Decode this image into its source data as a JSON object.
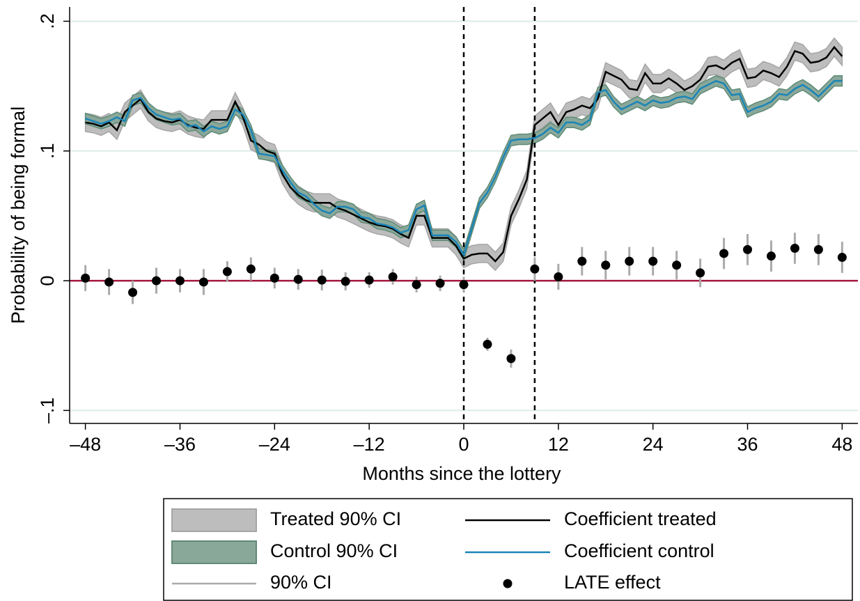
{
  "chart_data": {
    "type": "line",
    "xlabel": "Months since the lottery",
    "ylabel": "Probability of being formal",
    "x": [
      -48,
      -47,
      -46,
      -45,
      -44,
      -43,
      -42,
      -41,
      -40,
      -39,
      -38,
      -37,
      -36,
      -35,
      -34,
      -33,
      -32,
      -31,
      -30,
      -29,
      -28,
      -27,
      -26,
      -25,
      -24,
      -23,
      -22,
      -21,
      -20,
      -19,
      -18,
      -17,
      -16,
      -15,
      -14,
      -13,
      -12,
      -11,
      -10,
      -9,
      -8,
      -7,
      -6,
      -5,
      -4,
      -3,
      -2,
      -1,
      0,
      1,
      2,
      3,
      4,
      5,
      6,
      7,
      8,
      9,
      10,
      11,
      12,
      13,
      14,
      15,
      16,
      17,
      18,
      19,
      20,
      21,
      22,
      23,
      24,
      25,
      26,
      27,
      28,
      29,
      30,
      31,
      32,
      33,
      34,
      35,
      36,
      37,
      38,
      39,
      40,
      41,
      42,
      43,
      44,
      45,
      46,
      47,
      48
    ],
    "series": [
      {
        "name": "Coefficient treated",
        "color": "#000000",
        "ci_name": "Treated 90% CI",
        "ci_color": "#bdbdbd",
        "ci_edge": "#a5a5a5",
        "ci_halfwidth": 0.007,
        "values": [
          0.122,
          0.121,
          0.119,
          0.122,
          0.116,
          0.13,
          0.135,
          0.14,
          0.13,
          0.125,
          0.123,
          0.122,
          0.124,
          0.12,
          0.118,
          0.117,
          0.124,
          0.124,
          0.124,
          0.138,
          0.126,
          0.108,
          0.105,
          0.1,
          0.098,
          0.082,
          0.072,
          0.066,
          0.062,
          0.06,
          0.06,
          0.06,
          0.056,
          0.054,
          0.051,
          0.048,
          0.045,
          0.043,
          0.042,
          0.04,
          0.036,
          0.033,
          0.05,
          0.05,
          0.033,
          0.033,
          0.033,
          0.027,
          0.017,
          0.02,
          0.021,
          0.021,
          0.015,
          0.022,
          0.05,
          0.063,
          0.078,
          0.12,
          0.125,
          0.13,
          0.12,
          0.13,
          0.132,
          0.135,
          0.133,
          0.14,
          0.161,
          0.158,
          0.155,
          0.148,
          0.147,
          0.16,
          0.152,
          0.152,
          0.156,
          0.152,
          0.147,
          0.15,
          0.155,
          0.165,
          0.166,
          0.163,
          0.168,
          0.171,
          0.156,
          0.157,
          0.162,
          0.16,
          0.157,
          0.165,
          0.177,
          0.175,
          0.168,
          0.169,
          0.172,
          0.18,
          0.173
        ]
      },
      {
        "name": "Coefficient control",
        "color": "#1a85b8",
        "ci_name": "Control 90% CI",
        "ci_color": "#8aa89a",
        "ci_edge": "#5f8a75",
        "ci_halfwidth": 0.004,
        "values": [
          0.125,
          0.123,
          0.121,
          0.123,
          0.126,
          0.123,
          0.139,
          0.141,
          0.133,
          0.128,
          0.126,
          0.124,
          0.125,
          0.119,
          0.12,
          0.115,
          0.119,
          0.117,
          0.119,
          0.132,
          0.128,
          0.116,
          0.098,
          0.097,
          0.096,
          0.085,
          0.076,
          0.068,
          0.065,
          0.059,
          0.054,
          0.052,
          0.057,
          0.057,
          0.055,
          0.049,
          0.048,
          0.044,
          0.043,
          0.041,
          0.037,
          0.039,
          0.055,
          0.058,
          0.035,
          0.035,
          0.035,
          0.03,
          0.02,
          0.04,
          0.06,
          0.068,
          0.08,
          0.095,
          0.108,
          0.109,
          0.109,
          0.11,
          0.113,
          0.118,
          0.114,
          0.122,
          0.122,
          0.12,
          0.124,
          0.145,
          0.147,
          0.138,
          0.132,
          0.135,
          0.138,
          0.135,
          0.139,
          0.137,
          0.138,
          0.141,
          0.142,
          0.14,
          0.148,
          0.151,
          0.154,
          0.152,
          0.143,
          0.144,
          0.13,
          0.133,
          0.135,
          0.138,
          0.144,
          0.143,
          0.148,
          0.151,
          0.147,
          0.142,
          0.148,
          0.154,
          0.154
        ]
      }
    ],
    "late": {
      "name": "LATE effect",
      "error_name": "90% CI",
      "color": "#000000",
      "error_color": "#aaaaaa",
      "x": [
        -48,
        -45,
        -42,
        -39,
        -36,
        -33,
        -30,
        -27,
        -24,
        -21,
        -18,
        -15,
        -12,
        -9,
        -6,
        -3,
        0,
        3,
        6,
        9,
        12,
        15,
        18,
        21,
        24,
        27,
        30,
        33,
        36,
        39,
        42,
        45,
        48
      ],
      "values": [
        0.002,
        -0.001,
        -0.009,
        0,
        0,
        -0.001,
        0.007,
        0.009,
        0.002,
        0.001,
        0.0005,
        -0.0005,
        0.0005,
        0.003,
        -0.003,
        -0.002,
        -0.003,
        -0.049,
        -0.06,
        0.009,
        0.003,
        0.015,
        0.012,
        0.015,
        0.015,
        0.012,
        0.006,
        0.021,
        0.024,
        0.019,
        0.025,
        0.024,
        0.018
      ],
      "errors": [
        0.01,
        0.01,
        0.009,
        0.01,
        0.009,
        0.01,
        0.008,
        0.009,
        0.008,
        0.008,
        0.008,
        0.007,
        0.006,
        0.006,
        0.006,
        0.006,
        0.006,
        0.005,
        0.007,
        0.009,
        0.01,
        0.011,
        0.011,
        0.011,
        0.011,
        0.011,
        0.011,
        0.012,
        0.012,
        0.012,
        0.012,
        0.012,
        0.012
      ]
    },
    "zero_line_color": "#a3163d",
    "vlines": [
      0,
      9
    ],
    "xlim": [
      -50,
      50
    ],
    "ylim": [
      -0.11,
      0.211
    ],
    "xticks": [
      {
        "value": -48,
        "label": "–48"
      },
      {
        "value": -36,
        "label": "–36"
      },
      {
        "value": -24,
        "label": "–24"
      },
      {
        "value": -12,
        "label": "–12"
      },
      0,
      12,
      24,
      36,
      48
    ],
    "yticks": [
      {
        "value": -0.1,
        "label": "–.1"
      },
      0,
      {
        "value": 0.1,
        "label": ".1"
      },
      {
        "value": 0.2,
        "label": ".2"
      }
    ],
    "grid": true,
    "grid_color": "#dcebe9",
    "legend": "bottom"
  }
}
